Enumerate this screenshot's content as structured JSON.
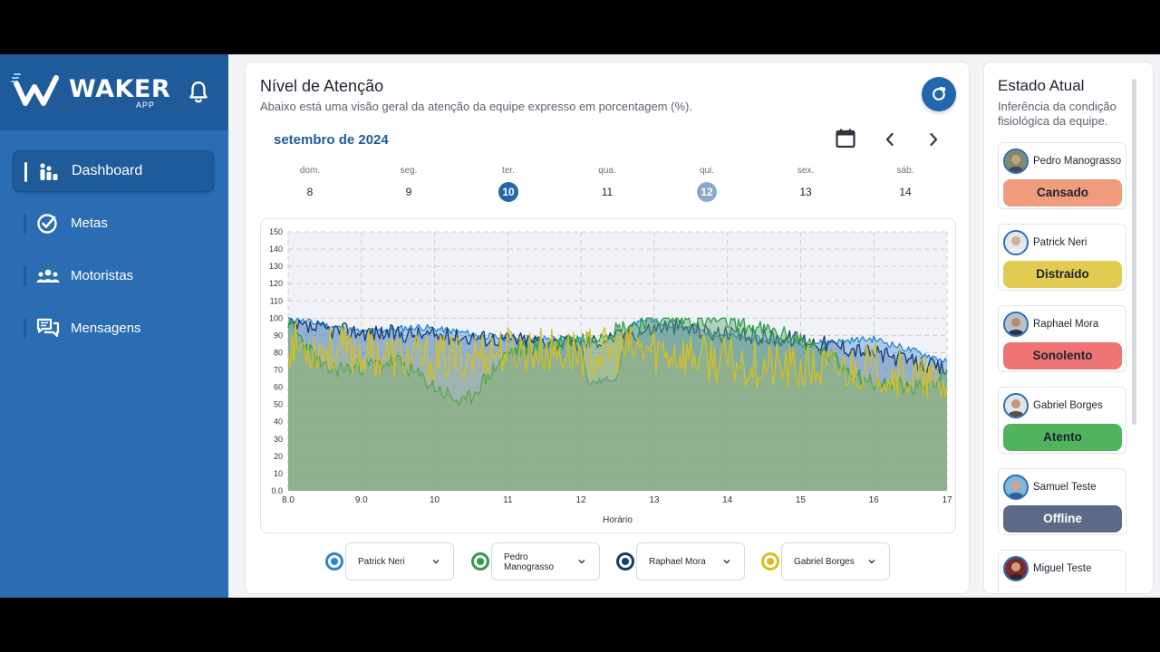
{
  "sidebar": {
    "logo_text": "WAKER",
    "logo_sub": "APP",
    "items": [
      {
        "label": "Dashboard",
        "icon": "bar-chart-icon",
        "active": true
      },
      {
        "label": "Metas",
        "icon": "check-circle-icon",
        "active": false
      },
      {
        "label": "Motoristas",
        "icon": "users-icon",
        "active": false
      },
      {
        "label": "Mensagens",
        "icon": "chat-icon",
        "active": false
      }
    ]
  },
  "main": {
    "title": "Nível de Atenção",
    "subtitle": "Abaixo está uma visão geral da atenção da equipe expresso em porcentagem (%).",
    "month": "setembro de 2024",
    "days": [
      {
        "name": "dom.",
        "num": "8"
      },
      {
        "name": "seg.",
        "num": "9"
      },
      {
        "name": "ter.",
        "num": "10"
      },
      {
        "name": "qua.",
        "num": "11"
      },
      {
        "name": "qui.",
        "num": "12"
      },
      {
        "name": "sex.",
        "num": "13"
      },
      {
        "name": "sáb.",
        "num": "14"
      }
    ],
    "legend": [
      {
        "label": "Patrick Neri",
        "color": "#2a86d1"
      },
      {
        "label": "Pedro Manograsso",
        "color": "#2e9e48"
      },
      {
        "label": "Raphael Mora",
        "color": "#143d6e"
      },
      {
        "label": "Gabriel Borges",
        "color": "#d6c020"
      }
    ]
  },
  "chart_data": {
    "type": "area",
    "xlabel": "Horário",
    "ylabel": "",
    "x_ticks": [
      "8.0",
      "9.0",
      "10",
      "11",
      "12",
      "13",
      "14",
      "15",
      "16",
      "17"
    ],
    "y_ticks": [
      "0.0",
      "10",
      "20",
      "30",
      "40",
      "50",
      "60",
      "70",
      "80",
      "90",
      "100",
      "110",
      "120",
      "130",
      "140",
      "150"
    ],
    "xlim": [
      8,
      17
    ],
    "ylim": [
      0,
      150
    ],
    "series": [
      {
        "name": "Patrick Neri",
        "color": "#2a86d1",
        "points": [
          [
            8,
            100
          ],
          [
            9,
            92
          ],
          [
            9.8,
            95
          ],
          [
            11,
            88
          ],
          [
            12,
            88
          ],
          [
            12.1,
            62
          ],
          [
            12.5,
            66
          ],
          [
            12.6,
            90
          ],
          [
            12.8,
            100
          ],
          [
            13,
            98
          ],
          [
            14,
            90
          ],
          [
            15,
            85
          ],
          [
            16,
            88
          ],
          [
            17,
            75
          ]
        ]
      },
      {
        "name": "Pedro Manograsso",
        "color": "#2e9e48",
        "points": [
          [
            8,
            98
          ],
          [
            8.5,
            70
          ],
          [
            9,
            72
          ],
          [
            9.5,
            75
          ],
          [
            10,
            60
          ],
          [
            10.4,
            50
          ],
          [
            11,
            80
          ],
          [
            11.5,
            85
          ],
          [
            12,
            88
          ],
          [
            13,
            100
          ],
          [
            14,
            98
          ],
          [
            15,
            88
          ],
          [
            16,
            62
          ],
          [
            16.7,
            60
          ],
          [
            17,
            70
          ]
        ]
      },
      {
        "name": "Raphael Mora",
        "color": "#143d6e",
        "points": [
          [
            8,
            95
          ],
          [
            9,
            92
          ],
          [
            10,
            90
          ],
          [
            11,
            88
          ],
          [
            12,
            85
          ],
          [
            13.2,
            96
          ],
          [
            14,
            90
          ],
          [
            15,
            88
          ],
          [
            16,
            80
          ],
          [
            17,
            70
          ]
        ]
      },
      {
        "name": "Gabriel Borges",
        "color": "#d6c020",
        "points": [
          [
            8,
            85
          ],
          [
            9,
            80
          ],
          [
            10,
            76
          ],
          [
            11,
            82
          ],
          [
            12,
            80
          ],
          [
            13,
            82
          ],
          [
            14,
            75
          ],
          [
            15,
            70
          ],
          [
            16,
            72
          ],
          [
            17,
            60
          ]
        ]
      }
    ]
  },
  "panel": {
    "title": "Estado Atual",
    "subtitle_l1": "Inferência da condição",
    "subtitle_l2": "fisiológica da equipe.",
    "people": [
      {
        "name": "Pedro Manograsso",
        "status": "Cansado",
        "color": "#ef9b7d"
      },
      {
        "name": "Patrick Neri",
        "status": "Distraído",
        "color": "#e2cb50"
      },
      {
        "name": "Raphael Mora",
        "status": "Sonolento",
        "color": "#ef7474"
      },
      {
        "name": "Gabriel Borges",
        "status": "Atento",
        "color": "#4fb45d"
      },
      {
        "name": "Samuel Teste",
        "status": "Offline",
        "color": "#5d6a86"
      },
      {
        "name": "Miguel Teste",
        "status": "",
        "color": "#ffffff"
      }
    ]
  }
}
